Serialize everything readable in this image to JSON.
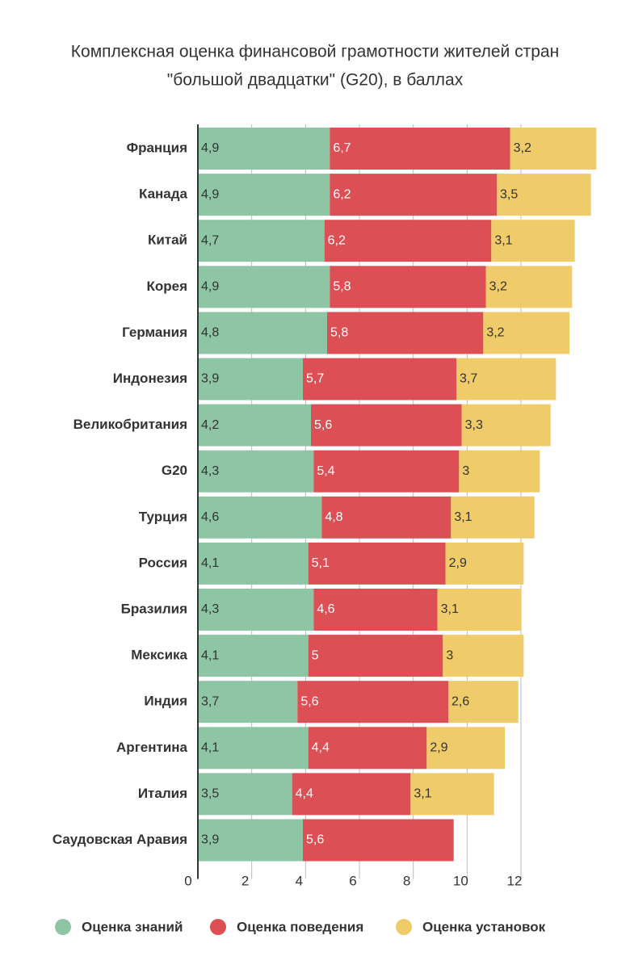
{
  "chart_data": {
    "type": "stacked-bar-horizontal",
    "title": "Комплексная оценка финансовой грамотности жителей стран \"большой двадцатки\" (G20), в баллах",
    "categories": [
      "Франция",
      "Канада",
      "Китай",
      "Корея",
      "Германия",
      "Индонезия",
      "Великобритания",
      "G20",
      "Турция",
      "Россия",
      "Бразилия",
      "Мексика",
      "Индия",
      "Аргентина",
      "Италия",
      "Саудовская Аравия"
    ],
    "series": [
      {
        "name": "Оценка знаний",
        "color": "#8dc5a5",
        "values": [
          4.9,
          4.9,
          4.7,
          4.9,
          4.8,
          3.9,
          4.2,
          4.3,
          4.6,
          4.1,
          4.3,
          4.1,
          3.7,
          4.1,
          3.5,
          3.9
        ],
        "value_labels": [
          "4,9",
          "4,9",
          "4,7",
          "4,9",
          "4,8",
          "3,9",
          "4,2",
          "4,3",
          "4,6",
          "4,1",
          "4,3",
          "4,1",
          "3,7",
          "4,1",
          "3,5",
          "3,9"
        ]
      },
      {
        "name": "Оценка поведения",
        "color": "#dc5055",
        "values": [
          6.7,
          6.2,
          6.2,
          5.8,
          5.8,
          5.7,
          5.6,
          5.4,
          4.8,
          5.1,
          4.6,
          5,
          5.6,
          4.4,
          4.4,
          5.6
        ],
        "value_labels": [
          "6,7",
          "6,2",
          "6,2",
          "5,8",
          "5,8",
          "5,7",
          "5,6",
          "5,4",
          "4,8",
          "5,1",
          "4,6",
          "5",
          "5,6",
          "4,4",
          "4,4",
          "5,6"
        ]
      },
      {
        "name": "Оценка установок",
        "color": "#f0cb6a",
        "values": [
          3.2,
          3.5,
          3.1,
          3.2,
          3.2,
          3.7,
          3.3,
          3,
          3.1,
          2.9,
          3.1,
          3,
          2.6,
          2.9,
          3.1,
          null
        ],
        "value_labels": [
          "3,2",
          "3,5",
          "3,1",
          "3,2",
          "3,2",
          "3,7",
          "3,3",
          "3",
          "3,1",
          "2,9",
          "3,1",
          "3",
          "2,6",
          "2,9",
          "3,1",
          null
        ]
      }
    ],
    "xlim": [
      0,
      15
    ],
    "xticks": [
      0,
      2,
      4,
      6,
      8,
      10,
      12
    ],
    "grid": true
  }
}
